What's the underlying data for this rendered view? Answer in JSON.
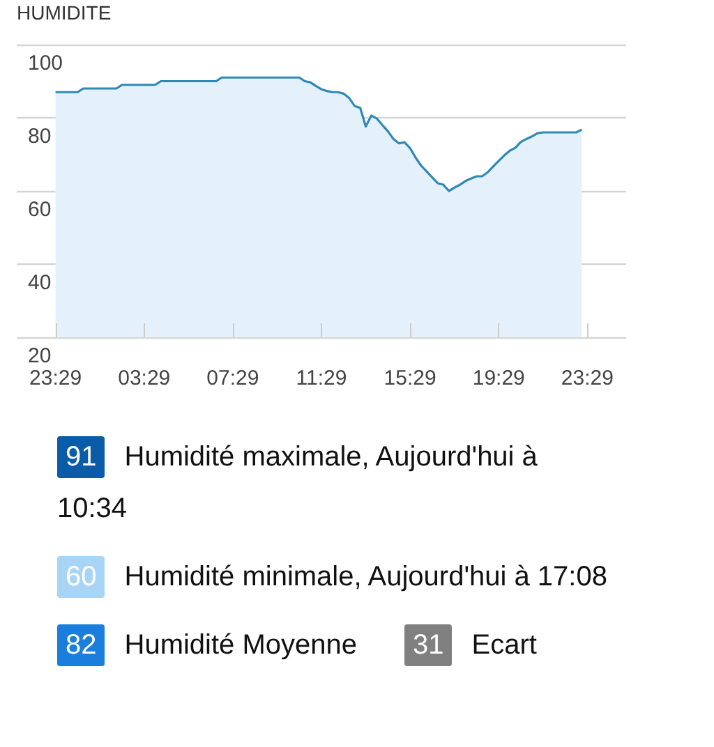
{
  "chart_data": {
    "type": "area",
    "title": "HUMIDITE",
    "categories": [
      null,
      null,
      null,
      null,
      null,
      null,
      null,
      "23:29",
      null,
      null,
      null,
      null,
      null,
      null,
      null,
      null,
      null,
      null,
      null,
      null,
      null,
      null,
      null,
      "03:29",
      null,
      null,
      null,
      null,
      null,
      null,
      null,
      null,
      null,
      null,
      null,
      null,
      null,
      null,
      null,
      "07:29",
      null,
      null,
      null,
      null,
      null,
      null,
      null,
      null,
      null,
      null,
      null,
      null,
      null,
      null,
      null,
      "11:29",
      null,
      null,
      null,
      null,
      null,
      null,
      null,
      null,
      null,
      null,
      null,
      null,
      null,
      null,
      null,
      "15:29",
      null,
      null,
      null,
      null,
      null,
      null,
      null,
      null,
      null,
      null,
      null,
      null,
      null,
      null,
      null,
      "19:29",
      null,
      null,
      null,
      null,
      null,
      null,
      null,
      null,
      null,
      null,
      null,
      null,
      null,
      null,
      null,
      "23:29",
      null,
      null,
      null,
      null,
      null,
      null,
      null
    ],
    "series": [
      {
        "color": "#2f88b5",
        "values": [
          null,
          null,
          null,
          null,
          null,
          null,
          null,
          87,
          87,
          87,
          87,
          87,
          88,
          88,
          88,
          88,
          88,
          88,
          88,
          89,
          89,
          89,
          89,
          89,
          89,
          89,
          90,
          90,
          90,
          90,
          90,
          90,
          90,
          90,
          90,
          90,
          90,
          91,
          91,
          91,
          91,
          91,
          91,
          91,
          91,
          91,
          91,
          91,
          91,
          91,
          91,
          91,
          90,
          89.7,
          88.7,
          87.8,
          87.3,
          87,
          87,
          86.6,
          85.4,
          83.2,
          82.7,
          77.6,
          80.6,
          79.8,
          78,
          76.3,
          74.2,
          73,
          73.3,
          71.7,
          69.1,
          66.9,
          65.3,
          63.7,
          62.1,
          61.7,
          60,
          60.9,
          61.7,
          62.7,
          63.4,
          64,
          64,
          65.1,
          66.7,
          68.2,
          69.7,
          71,
          71.8,
          73.4,
          74.2,
          74.9,
          75.8,
          76,
          76,
          76,
          76,
          76,
          76,
          76,
          76.8,
          null,
          null,
          null,
          null,
          null,
          null,
          null,
          null
        ]
      }
    ],
    "ylim": [
      20,
      100
    ],
    "yticks": [
      20,
      40,
      60,
      80,
      100
    ],
    "grid": "y",
    "marker": "none",
    "line_style": "solid",
    "annotations": [
      "91",
      "Humidité maximale, Aujourd'hui à 10:34",
      "60",
      "Humidité minimale, Aujourd'hui à 17:08",
      "82",
      "Humidité Moyenne",
      "31",
      "Ecart"
    ]
  }
}
